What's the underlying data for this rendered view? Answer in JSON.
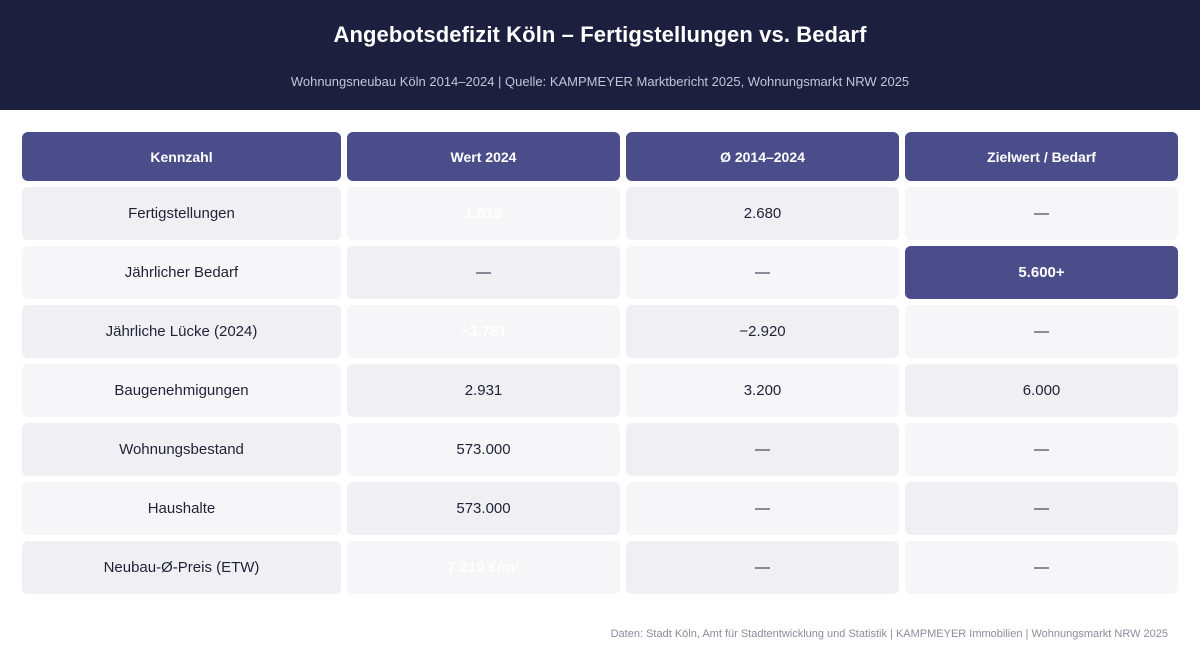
{
  "header": {
    "title": "Angebotsdefizit Köln – Fertigstellungen vs. Bedarf",
    "subtitle": "Wohnungsneubau Köln 2014–2024 | Quelle: KAMPMEYER Marktbericht 2025, Wohnungsmarkt NRW 2025"
  },
  "chart_data": {
    "type": "table",
    "title": "Angebotsdefizit Köln – Fertigstellungen vs. Bedarf",
    "subtitle": "Wohnungsneubau Köln 2014–2024 | Quelle: KAMPMEYER Marktbericht 2025, Wohnungsmarkt NRW 2025",
    "columns": [
      "Kennzahl",
      "Wert 2024",
      "Ø 2014–2024",
      "Zielwert / Bedarf"
    ],
    "rows": [
      [
        "Fertigstellungen",
        "1.819",
        "2.680",
        "—"
      ],
      [
        "Jährlicher Bedarf",
        "—",
        "—",
        "5.600+"
      ],
      [
        "Jährliche Lücke (2024)",
        "−3.781",
        "−2.920",
        "—"
      ],
      [
        "Baugenehmigungen",
        "2.931",
        "3.200",
        "6.000"
      ],
      [
        "Wohnungsbestand",
        "573.000",
        "—",
        "—"
      ],
      [
        "Haushalte",
        "573.000",
        "—",
        "—"
      ],
      [
        "Neubau-Ø-Preis (ETW)",
        "7.210 €/m²",
        "—",
        "—"
      ]
    ],
    "highlighted_cells": [
      {
        "row": 1,
        "col": 3
      }
    ],
    "faded_cells": [
      {
        "row": 0,
        "col": 1
      },
      {
        "row": 2,
        "col": 1
      },
      {
        "row": 6,
        "col": 1
      }
    ]
  },
  "colors": {
    "header_bg": "#1c1f3e",
    "column_header_bg": "#4b4d8b",
    "highlight_bg": "#4b4d8b",
    "row_bg_a": "#efeff4",
    "row_bg_b": "#f6f6f9",
    "text": "#1f2235"
  },
  "footer": {
    "text": "Daten: Stadt Köln, Amt für Stadtentwicklung und Statistik | KAMPMEYER Immobilien | Wohnungsmarkt NRW 2025"
  }
}
